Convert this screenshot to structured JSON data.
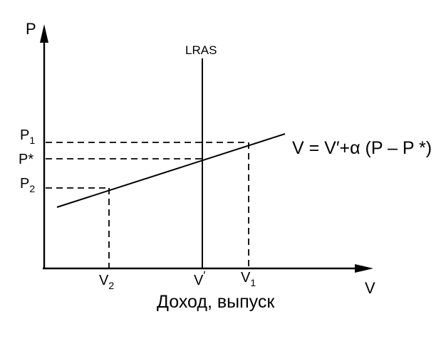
{
  "diagram": {
    "axis_y_label": "P",
    "axis_x_label": "V",
    "x_axis_caption": "Доход, выпуск",
    "lras_label": "LRAS",
    "equation": "V = V′+α (P – P *)",
    "price_labels": {
      "p1": {
        "main": "P",
        "sub": "1"
      },
      "pstar": {
        "main": "P*",
        "sub": ""
      },
      "p2": {
        "main": "P",
        "sub": "2"
      }
    },
    "output_labels": {
      "v2": {
        "main": "V",
        "sub": "2",
        "sup": ""
      },
      "vprime": {
        "main": "V",
        "sub": "",
        "sup": "′"
      },
      "v1": {
        "main": "V",
        "sub": "1",
        "sup": ""
      }
    },
    "colors": {
      "ink": "#000000",
      "background": "#ffffff"
    }
  }
}
